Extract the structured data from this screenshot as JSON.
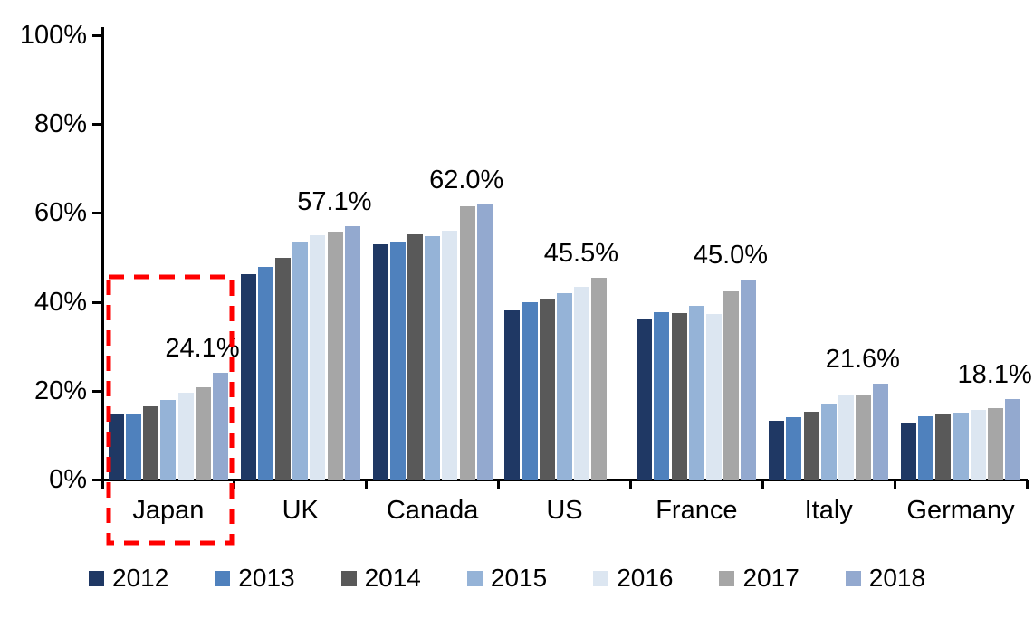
{
  "chart_data": {
    "type": "bar",
    "title": "",
    "xlabel": "",
    "ylabel": "",
    "categories": [
      "Japan",
      "UK",
      "Canada",
      "US",
      "France",
      "Italy",
      "Germany"
    ],
    "series": [
      {
        "name": "2012",
        "color": "#1F3864",
        "values": [
          14.6,
          46.3,
          52.9,
          38.1,
          36.3,
          13.3,
          12.6
        ]
      },
      {
        "name": "2013",
        "color": "#4F81BD",
        "values": [
          14.8,
          47.9,
          53.5,
          40.0,
          37.6,
          14.1,
          14.2
        ]
      },
      {
        "name": "2014",
        "color": "#595959",
        "values": [
          16.5,
          50.0,
          55.2,
          40.8,
          37.5,
          15.3,
          14.6
        ]
      },
      {
        "name": "2015",
        "color": "#95B3D7",
        "values": [
          18.0,
          53.4,
          54.8,
          42.0,
          39.1,
          16.9,
          15.0
        ]
      },
      {
        "name": "2016",
        "color": "#DCE6F1",
        "values": [
          19.6,
          54.9,
          56.1,
          43.4,
          37.2,
          18.9,
          15.7
        ]
      },
      {
        "name": "2017",
        "color": "#A6A6A6",
        "values": [
          20.8,
          55.8,
          61.5,
          45.5,
          42.3,
          19.2,
          16.0
        ]
      },
      {
        "name": "2018",
        "color": "#93A9CF",
        "values": [
          24.1,
          57.1,
          62.0,
          null,
          45.0,
          21.6,
          18.1
        ]
      }
    ],
    "data_labels": [
      "24.1%",
      "57.1%",
      "62.0%",
      "45.5%",
      "45.0%",
      "21.6%",
      "18.1%"
    ],
    "ylim": [
      0,
      100
    ],
    "y_ticks": [
      "100%",
      "80%",
      "60%",
      "40%",
      "20%",
      "0%"
    ],
    "grid": false,
    "legend_position": "bottom",
    "axis_color": "#000000",
    "highlight": {
      "category": "Japan",
      "style": "dashed-box",
      "color": "#FF0000"
    }
  }
}
